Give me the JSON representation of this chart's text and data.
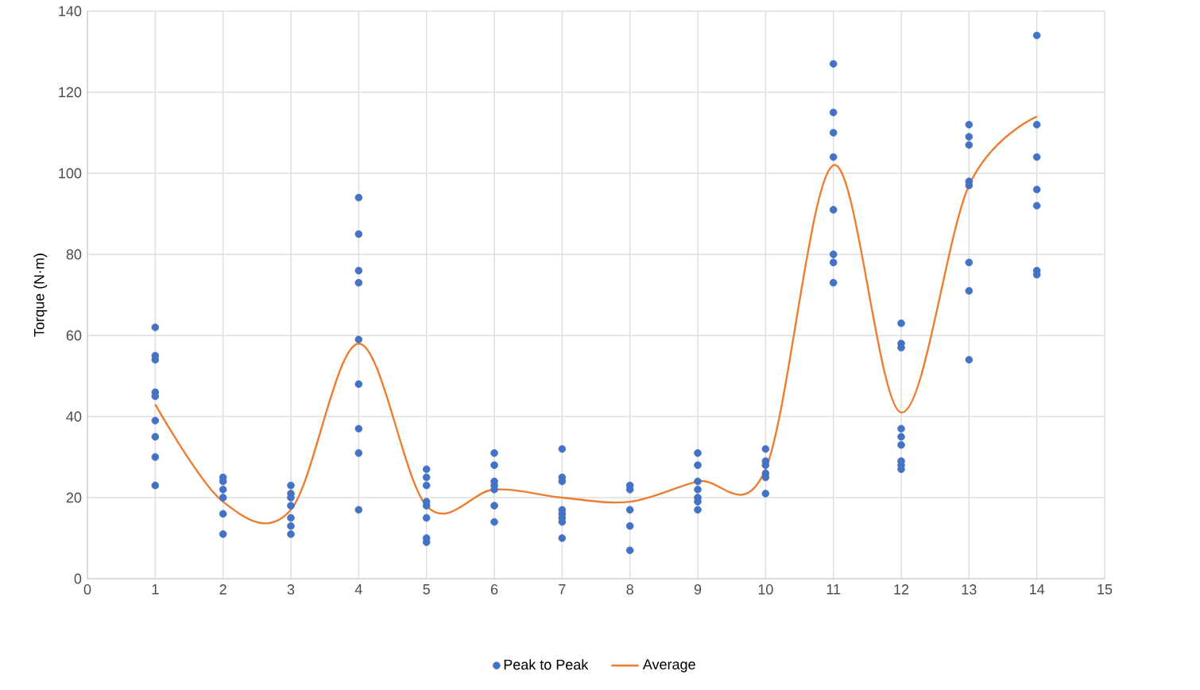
{
  "chart_data": {
    "type": "scatter",
    "ylabel": "Torque (N·m)",
    "xlim": [
      0,
      15
    ],
    "xticks": [
      0,
      1,
      2,
      3,
      4,
      5,
      6,
      7,
      8,
      9,
      10,
      11,
      12,
      13,
      14,
      15
    ],
    "ylim": [
      0,
      140
    ],
    "yticks": [
      0,
      20,
      40,
      60,
      80,
      100,
      120,
      140
    ],
    "grid": true,
    "legend": "bottom",
    "series": [
      {
        "name": "Peak to Peak",
        "marker": "circle",
        "color": "#4472c4",
        "x": [
          1,
          1,
          1,
          1,
          1,
          1,
          1,
          1,
          1,
          2,
          2,
          2,
          2,
          2,
          2,
          3,
          3,
          3,
          3,
          3,
          3,
          3,
          4,
          4,
          4,
          4,
          4,
          4,
          4,
          4,
          4,
          5,
          5,
          5,
          5,
          5,
          5,
          5,
          5,
          6,
          6,
          6,
          6,
          6,
          6,
          6,
          7,
          7,
          7,
          7,
          7,
          7,
          7,
          7,
          8,
          8,
          8,
          8,
          8,
          9,
          9,
          9,
          9,
          9,
          9,
          9,
          10,
          10,
          10,
          10,
          10,
          10,
          11,
          11,
          11,
          11,
          11,
          11,
          11,
          11,
          12,
          12,
          12,
          12,
          12,
          12,
          12,
          12,
          12,
          13,
          13,
          13,
          13,
          13,
          13,
          13,
          13,
          14,
          14,
          14,
          14,
          14,
          14,
          14
        ],
        "values": [
          62,
          55,
          54,
          46,
          45,
          39,
          35,
          30,
          23,
          25,
          24,
          22,
          20,
          16,
          11,
          23,
          21,
          20,
          18,
          15,
          13,
          11,
          94,
          85,
          76,
          73,
          59,
          48,
          37,
          31,
          17,
          27,
          25,
          23,
          19,
          18,
          15,
          10,
          9,
          31,
          28,
          24,
          23,
          22,
          18,
          14,
          32,
          25,
          24,
          17,
          16,
          15,
          14,
          10,
          23,
          22,
          17,
          13,
          7,
          31,
          28,
          24,
          22,
          20,
          19,
          17,
          32,
          29,
          28,
          26,
          25,
          21,
          127,
          115,
          110,
          104,
          91,
          80,
          78,
          73,
          63,
          58,
          57,
          37,
          35,
          33,
          29,
          28,
          27,
          112,
          109,
          107,
          98,
          97,
          78,
          71,
          54,
          134,
          112,
          104,
          96,
          92,
          76,
          75
        ]
      },
      {
        "name": "Average",
        "type": "line",
        "marker": "none",
        "line_style": "solid",
        "color": "#ed7d31",
        "x": [
          1,
          2,
          3,
          4,
          5,
          6,
          7,
          8,
          9,
          10,
          11,
          12,
          13,
          14
        ],
        "values": [
          43,
          19,
          17,
          58,
          18,
          22,
          20,
          19,
          24,
          27,
          102,
          41,
          97,
          114
        ]
      }
    ]
  }
}
